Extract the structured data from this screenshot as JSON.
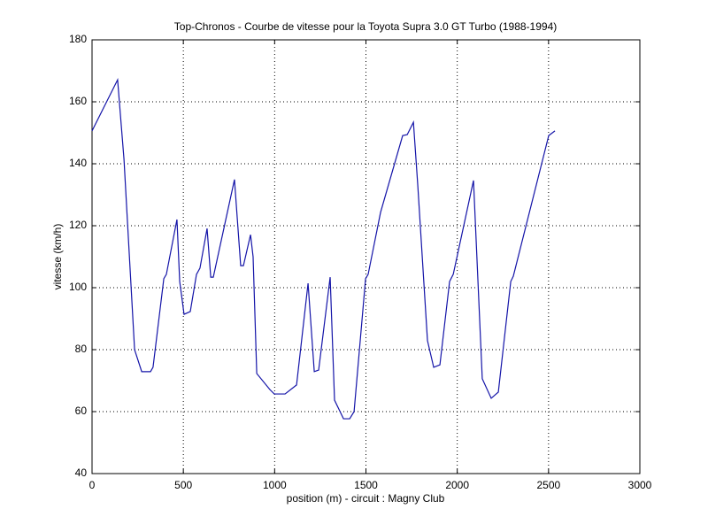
{
  "chart_data": {
    "type": "line",
    "title": "Top-Chronos - Courbe de vitesse pour la Toyota Supra 3.0 GT Turbo (1988-1994)",
    "x_label": "position (m) - circuit : Magny Club",
    "y_label": "vitesse (km/h)",
    "x": [
      0,
      140,
      175,
      233,
      272,
      320,
      334,
      393,
      407,
      465,
      480,
      504,
      538,
      572,
      591,
      630,
      650,
      664,
      780,
      814,
      829,
      868,
      882,
      902,
      974,
      998,
      1057,
      1120,
      1183,
      1217,
      1241,
      1304,
      1328,
      1377,
      1411,
      1435,
      1498,
      1512,
      1580,
      1701,
      1726,
      1760,
      1784,
      1837,
      1871,
      1905,
      1958,
      1978,
      2089,
      2137,
      2186,
      2225,
      2293,
      2307,
      2501,
      2535
    ],
    "values": [
      150.6,
      167.1,
      141.4,
      80,
      72.9,
      72.9,
      74.3,
      102.9,
      104.3,
      122,
      102,
      91.4,
      92.3,
      104.3,
      106.3,
      119.1,
      103.4,
      103.4,
      134.9,
      107.1,
      107.1,
      117.1,
      110,
      72.3,
      67.1,
      65.7,
      65.7,
      68.6,
      101.4,
      72.9,
      73.4,
      103.4,
      63.7,
      57.7,
      57.7,
      60,
      102.9,
      104.3,
      124.3,
      149.1,
      149.4,
      153.4,
      132.9,
      82.9,
      74.3,
      75.1,
      102,
      104.3,
      134.6,
      70.6,
      64.3,
      66.3,
      102,
      103.7,
      149.1,
      150.6
    ],
    "color": "#1414a8",
    "xlim": [
      0,
      3000
    ],
    "xticks": [
      0,
      500,
      1000,
      1500,
      2000,
      2500,
      3000
    ],
    "ylim": [
      40,
      180
    ],
    "yticks": [
      40,
      60,
      80,
      100,
      120,
      140,
      160,
      180
    ],
    "grid": true
  }
}
